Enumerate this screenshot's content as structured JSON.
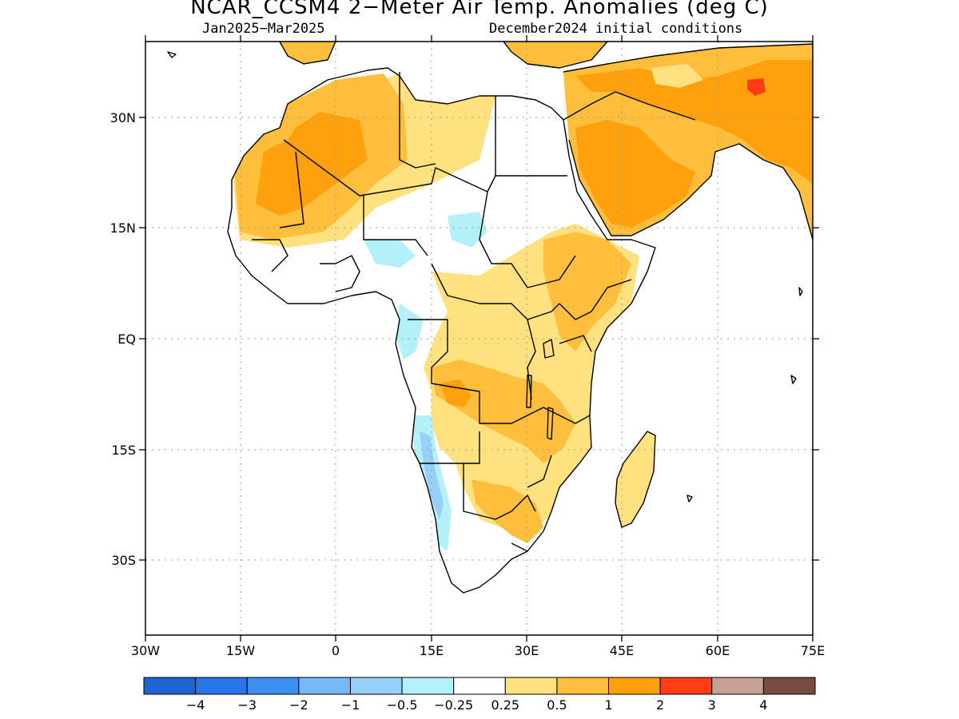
{
  "title": "NCAR_CCSM4 2−Meter Air Temp. Anomalies (deg C)",
  "subtitle_left": "Jan2025−Mar2025",
  "subtitle_right": "December2024 initial conditions",
  "axes": {
    "x_ticks": [
      "30W",
      "15W",
      "0",
      "15E",
      "30E",
      "45E",
      "60E",
      "75E"
    ],
    "y_ticks": [
      "30N",
      "15N",
      "EQ",
      "15S",
      "30S"
    ]
  },
  "colorbar": {
    "colors": [
      "#1e64d2",
      "#2a74ea",
      "#3c91f0",
      "#78b8f5",
      "#96d0f8",
      "#b4f0fa",
      "#ffffff",
      "#ffe17f",
      "#ffbf3c",
      "#ffa00c",
      "#ff3c14",
      "#c8a096",
      "#784b41"
    ],
    "labels": [
      "−4",
      "−3",
      "−2",
      "−1",
      "−0.5",
      "−0.25",
      "0.25",
      "0.5",
      "1",
      "2",
      "3",
      "4"
    ]
  },
  "legend_colors": {
    "land_outline": "#000000",
    "ocean": "#ffffff",
    "grid": "#9a9a9a"
  }
}
